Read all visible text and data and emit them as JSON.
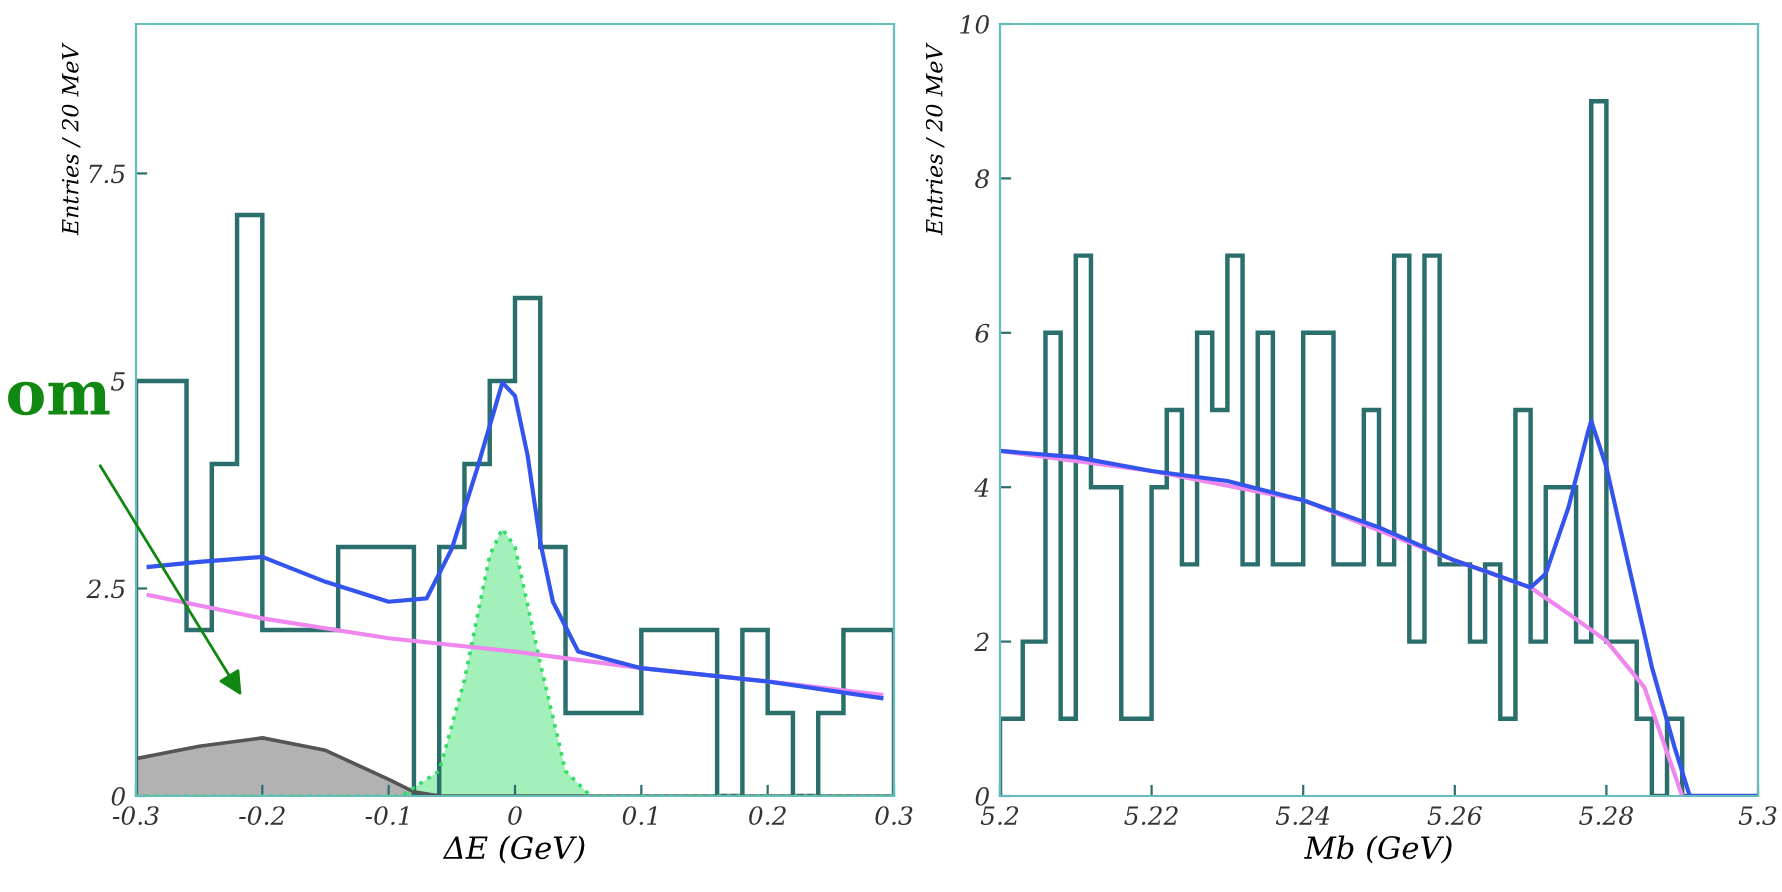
{
  "chart_data": [
    {
      "type": "histogram",
      "xlabel": "ΔE (GeV)",
      "ylabel": "Entries / 20 MeV",
      "xlim": [
        -0.3,
        0.3
      ],
      "ylim": [
        0,
        9.3
      ],
      "xticks": [
        -0.3,
        -0.2,
        -0.1,
        0,
        0.1,
        0.2,
        0.3
      ],
      "yticks": [
        0,
        2.5,
        5,
        7.5
      ],
      "grid": false,
      "legend": false,
      "annotations": [
        "om"
      ],
      "series": [
        {
          "type": "area",
          "color": "#555555",
          "x": [
            -0.3,
            -0.25,
            -0.2,
            -0.15,
            -0.1,
            -0.08,
            -0.06,
            0.3
          ],
          "values": [
            0.45,
            0.6,
            0.7,
            0.55,
            0.2,
            0.05,
            0,
            0
          ]
        },
        {
          "type": "area",
          "color": "#33dd66",
          "line_style": "dotted",
          "x": [
            -0.3,
            -0.09,
            -0.06,
            -0.04,
            -0.02,
            -0.01,
            0,
            0.02,
            0.04,
            0.06,
            0.3
          ],
          "values": [
            0,
            0,
            0.3,
            1.4,
            2.9,
            3.22,
            3.0,
            1.6,
            0.3,
            0,
            0
          ]
        },
        {
          "color": "#2a6f6c",
          "bins": [
            -0.3,
            -0.28,
            -0.26,
            -0.24,
            -0.22,
            -0.2,
            -0.18,
            -0.16,
            -0.14,
            -0.12,
            -0.1,
            -0.08,
            -0.06,
            -0.04,
            -0.02,
            0,
            0.02,
            0.04,
            0.06,
            0.08,
            0.1,
            0.12,
            0.14,
            0.16,
            0.18,
            0.2,
            0.22,
            0.24,
            0.26,
            0.28,
            0.3
          ],
          "values": [
            5,
            5,
            2,
            4,
            7,
            2,
            2,
            2,
            3,
            3,
            3,
            0,
            3,
            4,
            5,
            6,
            3,
            1,
            1,
            1,
            2,
            2,
            2,
            0,
            2,
            1,
            0,
            1,
            2,
            2
          ]
        },
        {
          "type": "line",
          "color": "#ee88ee",
          "x": [
            -0.29,
            -0.2,
            -0.1,
            0,
            0.1,
            0.2,
            0.29
          ],
          "values": [
            2.42,
            2.14,
            1.9,
            1.74,
            1.54,
            1.38,
            1.22
          ]
        },
        {
          "type": "line",
          "color": "#3355ee",
          "x": [
            -0.29,
            -0.25,
            -0.2,
            -0.15,
            -0.1,
            -0.07,
            -0.05,
            -0.03,
            -0.01,
            0,
            0.01,
            0.02,
            0.03,
            0.05,
            0.1,
            0.2,
            0.29
          ],
          "values": [
            2.76,
            2.82,
            2.88,
            2.58,
            2.34,
            2.38,
            2.98,
            3.94,
            4.98,
            4.82,
            4.1,
            3.06,
            2.34,
            1.74,
            1.54,
            1.38,
            1.18
          ]
        }
      ]
    },
    {
      "type": "histogram",
      "xlabel": "Mb (GeV)",
      "ylabel": "Entries / 20 MeV",
      "xlim": [
        5.2,
        5.3
      ],
      "ylim": [
        0,
        10
      ],
      "xticks": [
        5.2,
        5.22,
        5.24,
        5.26,
        5.28,
        5.3
      ],
      "yticks": [
        0,
        2,
        4,
        6,
        8,
        10
      ],
      "grid": false,
      "legend": false,
      "series": [
        {
          "color": "#2a6f6c",
          "bins": [
            5.2,
            5.203,
            5.206,
            5.208,
            5.21,
            5.212,
            5.216,
            5.22,
            5.222,
            5.224,
            5.226,
            5.228,
            5.23,
            5.232,
            5.234,
            5.236,
            5.24,
            5.244,
            5.248,
            5.25,
            5.252,
            5.254,
            5.256,
            5.258,
            5.262,
            5.264,
            5.266,
            5.268,
            5.27,
            5.272,
            5.276,
            5.278,
            5.28,
            5.284,
            5.286,
            5.288,
            5.29,
            5.3
          ],
          "values": [
            1,
            2,
            6,
            1,
            7,
            4,
            1,
            4,
            5,
            3,
            6,
            5,
            7,
            3,
            6,
            3,
            6,
            3,
            5,
            3,
            7,
            2,
            7,
            3,
            2,
            3,
            1,
            5,
            2,
            4,
            2,
            9,
            2,
            1,
            0,
            1,
            0
          ]
        },
        {
          "type": "line",
          "color": "#ee88ee",
          "x": [
            5.2,
            5.22,
            5.24,
            5.26,
            5.27,
            5.275,
            5.28,
            5.285,
            5.29
          ],
          "values": [
            4.47,
            4.21,
            3.83,
            3.05,
            2.7,
            2.36,
            2.01,
            1.41,
            0
          ]
        },
        {
          "type": "line",
          "color": "#3355ee",
          "x": [
            5.2,
            5.21,
            5.22,
            5.23,
            5.24,
            5.25,
            5.26,
            5.265,
            5.27,
            5.272,
            5.275,
            5.2775,
            5.278,
            5.28,
            5.283,
            5.286,
            5.289,
            5.291,
            5.3
          ],
          "values": [
            4.47,
            4.39,
            4.21,
            4.08,
            3.83,
            3.48,
            3.05,
            2.88,
            2.7,
            2.88,
            3.74,
            4.69,
            4.86,
            4.26,
            2.96,
            1.67,
            0.63,
            0,
            0
          ]
        }
      ]
    }
  ]
}
